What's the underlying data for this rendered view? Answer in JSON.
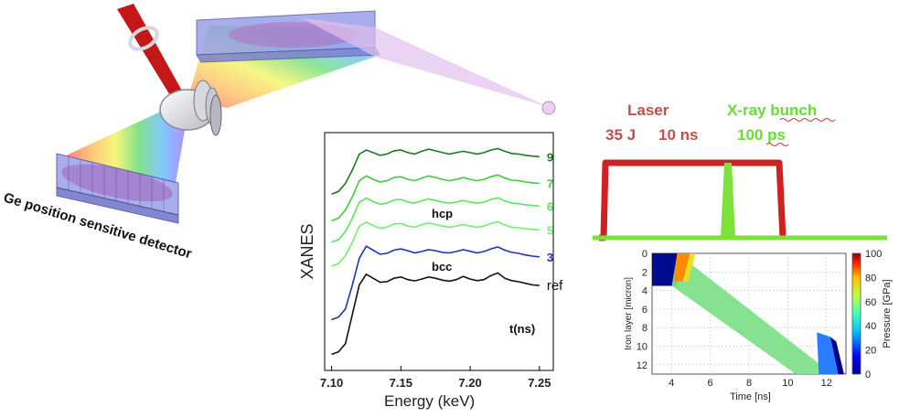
{
  "setup": {
    "detector_label": "Ge position sensitive detector"
  },
  "xanes_chart": {
    "ylabel": "XANES",
    "xlabel": "Energy (keV)",
    "x_ticks": [
      "7.10",
      "7.15",
      "7.20",
      "7.25"
    ],
    "phase_labels": {
      "hcp": "hcp",
      "bcc": "bcc"
    },
    "time_header": "t(ns)"
  },
  "timing": {
    "laser_title": "Laser",
    "laser_energy": "35 J",
    "laser_duration": "10 ns",
    "xray_title": "X-ray bunch",
    "xray_duration": "100 ps"
  },
  "pressure_map": {
    "xlabel": "Time [ns]",
    "ylabel": "Iron layer [micron]",
    "colorbar_label": "Pressure [GPa]",
    "x_ticks": [
      "4",
      "6",
      "8",
      "10",
      "12"
    ],
    "y_ticks": [
      "0",
      "2",
      "4",
      "6",
      "8",
      "10",
      "12"
    ],
    "colorbar_ticks": [
      "0",
      "20",
      "40",
      "60",
      "80",
      "100"
    ]
  },
  "chart_data": [
    {
      "type": "line",
      "xlabel": "Energy (keV)",
      "ylabel": "XANES",
      "xlim": [
        7.095,
        7.26
      ],
      "series": [
        {
          "name": "9",
          "color": "#1e7a1e",
          "x": [
            7.1,
            7.105,
            7.11,
            7.115,
            7.12,
            7.125,
            7.13,
            7.135,
            7.14,
            7.145,
            7.15,
            7.155,
            7.16,
            7.165,
            7.17,
            7.175,
            7.18,
            7.185,
            7.19,
            7.195,
            7.2,
            7.205,
            7.21,
            7.215,
            7.22,
            7.225,
            7.23,
            7.235,
            7.24,
            7.245,
            7.25
          ],
          "y": [
            6.0,
            6.1,
            6.4,
            6.9,
            7.5,
            7.65,
            7.55,
            7.45,
            7.5,
            7.62,
            7.65,
            7.55,
            7.5,
            7.6,
            7.68,
            7.62,
            7.55,
            7.5,
            7.55,
            7.6,
            7.55,
            7.5,
            7.55,
            7.65,
            7.7,
            7.6,
            7.52,
            7.5,
            7.45,
            7.42,
            7.4
          ]
        },
        {
          "name": "7",
          "color": "#3ccc3c",
          "x": [
            7.1,
            7.105,
            7.11,
            7.115,
            7.12,
            7.125,
            7.13,
            7.135,
            7.14,
            7.145,
            7.15,
            7.155,
            7.16,
            7.165,
            7.17,
            7.175,
            7.18,
            7.185,
            7.19,
            7.195,
            7.2,
            7.205,
            7.21,
            7.215,
            7.22,
            7.225,
            7.23,
            7.235,
            7.24,
            7.245,
            7.25
          ],
          "y": [
            5.0,
            5.1,
            5.4,
            5.9,
            6.5,
            6.68,
            6.55,
            6.45,
            6.5,
            6.62,
            6.65,
            6.55,
            6.5,
            6.6,
            6.68,
            6.62,
            6.55,
            6.5,
            6.55,
            6.62,
            6.55,
            6.5,
            6.55,
            6.65,
            6.72,
            6.6,
            6.52,
            6.5,
            6.45,
            6.42,
            6.4
          ]
        },
        {
          "name": "6",
          "color": "#5ae65a",
          "x": [
            7.1,
            7.105,
            7.11,
            7.115,
            7.12,
            7.125,
            7.13,
            7.135,
            7.14,
            7.145,
            7.15,
            7.155,
            7.16,
            7.165,
            7.17,
            7.175,
            7.18,
            7.185,
            7.19,
            7.195,
            7.2,
            7.205,
            7.21,
            7.215,
            7.22,
            7.225,
            7.23,
            7.235,
            7.24,
            7.245,
            7.25
          ],
          "y": [
            4.2,
            4.3,
            4.6,
            5.1,
            5.7,
            5.85,
            5.72,
            5.62,
            5.66,
            5.78,
            5.8,
            5.7,
            5.66,
            5.75,
            5.82,
            5.76,
            5.7,
            5.66,
            5.7,
            5.76,
            5.7,
            5.66,
            5.7,
            5.8,
            5.86,
            5.74,
            5.66,
            5.64,
            5.6,
            5.58,
            5.55
          ]
        },
        {
          "name": "5",
          "color": "#6ef06e",
          "x": [
            7.1,
            7.105,
            7.11,
            7.115,
            7.12,
            7.125,
            7.13,
            7.135,
            7.14,
            7.145,
            7.15,
            7.155,
            7.16,
            7.165,
            7.17,
            7.175,
            7.18,
            7.185,
            7.19,
            7.195,
            7.2,
            7.205,
            7.21,
            7.215,
            7.22,
            7.225,
            7.23,
            7.235,
            7.24,
            7.245,
            7.25
          ],
          "y": [
            3.3,
            3.4,
            3.7,
            4.2,
            4.8,
            4.95,
            4.82,
            4.72,
            4.76,
            4.88,
            4.9,
            4.8,
            4.76,
            4.85,
            4.92,
            4.86,
            4.8,
            4.76,
            4.8,
            4.86,
            4.8,
            4.76,
            4.8,
            4.9,
            4.96,
            4.84,
            4.76,
            4.74,
            4.7,
            4.68,
            4.65
          ]
        },
        {
          "name": "3",
          "color": "#2233bb",
          "x": [
            7.1,
            7.105,
            7.11,
            7.115,
            7.12,
            7.125,
            7.13,
            7.135,
            7.14,
            7.145,
            7.15,
            7.155,
            7.16,
            7.165,
            7.17,
            7.175,
            7.18,
            7.185,
            7.19,
            7.195,
            7.2,
            7.205,
            7.21,
            7.215,
            7.22,
            7.225,
            7.23,
            7.235,
            7.24,
            7.245,
            7.25
          ],
          "y": [
            1.3,
            1.4,
            1.7,
            2.6,
            3.6,
            4.05,
            3.9,
            3.75,
            3.78,
            3.9,
            3.95,
            3.88,
            3.8,
            3.85,
            3.92,
            3.88,
            3.82,
            3.8,
            3.85,
            3.92,
            3.86,
            3.8,
            3.85,
            3.95,
            4.02,
            3.9,
            3.82,
            3.78,
            3.72,
            3.68,
            3.65
          ]
        },
        {
          "name": "ref",
          "color": "#111111",
          "x": [
            7.1,
            7.105,
            7.11,
            7.115,
            7.12,
            7.125,
            7.13,
            7.135,
            7.14,
            7.145,
            7.15,
            7.155,
            7.16,
            7.165,
            7.17,
            7.175,
            7.18,
            7.185,
            7.19,
            7.195,
            7.2,
            7.205,
            7.21,
            7.215,
            7.22,
            7.225,
            7.23,
            7.235,
            7.24,
            7.245,
            7.25
          ],
          "y": [
            0.0,
            0.1,
            0.4,
            1.5,
            2.6,
            3.0,
            2.85,
            2.7,
            2.72,
            2.85,
            2.9,
            2.8,
            2.75,
            2.82,
            2.9,
            2.85,
            2.78,
            2.74,
            2.8,
            2.92,
            2.82,
            2.76,
            2.8,
            2.95,
            3.05,
            2.85,
            2.76,
            2.72,
            2.66,
            2.6,
            2.58
          ]
        }
      ]
    },
    {
      "type": "heatmap",
      "xlabel": "Time [ns]",
      "ylabel": "Iron layer [micron]",
      "colorbar": "Pressure [GPa]",
      "xlim": [
        3,
        13
      ],
      "ylim": [
        0,
        13
      ],
      "zlim": [
        0,
        100
      ],
      "shocked_region": {
        "front_time": [
          4.3,
          12.3
        ],
        "front_depth": [
          0,
          13
        ],
        "thickness_micron": 3.5,
        "pressure_GPa": 50
      }
    }
  ]
}
